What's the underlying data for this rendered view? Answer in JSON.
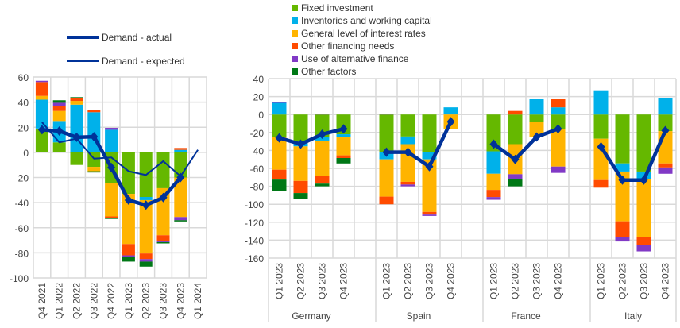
{
  "colors": {
    "fixed": "#65b800",
    "inventories": "#00b1ea",
    "rates": "#ffb400",
    "other_fin": "#ff4b00",
    "alt_fin": "#8139c6",
    "other": "#007816",
    "line": "#003299"
  },
  "legend_left": [
    {
      "label": "Demand - actual",
      "style": "thick"
    },
    {
      "label": "Demand - expected",
      "style": "thin"
    }
  ],
  "legend_right": [
    {
      "label": "Fixed investment",
      "key": "fixed"
    },
    {
      "label": "Inventories and working capital",
      "key": "inventories"
    },
    {
      "label": "General level of interest rates",
      "key": "rates"
    },
    {
      "label": "Other financing needs",
      "key": "other_fin"
    },
    {
      "label": "Use of alternative finance",
      "key": "alt_fin"
    },
    {
      "label": "Other factors",
      "key": "other"
    }
  ],
  "chart_data": [
    {
      "type": "bar",
      "stacked": true,
      "ylim": [
        -100,
        60
      ],
      "yticks": [
        -100,
        -80,
        -60,
        -40,
        -20,
        0,
        20,
        40,
        60
      ],
      "grid": true,
      "legend": "top",
      "categories": [
        "Q4 2021",
        "Q1 2022",
        "Q2 2022",
        "Q3 2022",
        "Q4 2022",
        "Q1 2023",
        "Q2 2023",
        "Q3 2023",
        "Q4 2023",
        "Q1 2024"
      ],
      "series": [
        {
          "name": "Fixed investment",
          "key": "fixed",
          "values": [
            19,
            8,
            -10,
            -11.5,
            -24.5,
            -33,
            -35.5,
            -28.5,
            -20,
            null
          ]
        },
        {
          "name": "Inventories and working capital",
          "key": "inventories",
          "values": [
            23,
            17,
            38,
            32,
            18,
            0.5,
            -2.5,
            0.5,
            2,
            null
          ]
        },
        {
          "name": "General level of interest rates",
          "key": "rates",
          "values": [
            3,
            8,
            3,
            -3.5,
            -26.5,
            -40,
            -42.5,
            -37.5,
            -31.5,
            null
          ]
        },
        {
          "name": "Other financing needs",
          "key": "other_fin",
          "values": [
            11,
            4,
            2,
            2,
            -1,
            -9,
            -4.5,
            -4.5,
            1.5,
            null
          ]
        },
        {
          "name": "Use of alternative finance",
          "key": "alt_fin",
          "values": [
            1,
            2.5,
            0,
            0,
            1.5,
            -1,
            -2,
            -1,
            -2.5,
            null
          ]
        },
        {
          "name": "Other factors",
          "key": "other",
          "values": [
            0,
            2,
            1,
            -1,
            -1,
            -4,
            -4,
            -1,
            -1,
            null
          ]
        }
      ],
      "lines": [
        {
          "name": "Demand - actual",
          "style": "thick",
          "values": [
            18,
            17,
            12,
            12.5,
            -12,
            -38,
            -42,
            -36,
            -20,
            null
          ]
        },
        {
          "name": "Demand - expected",
          "style": "thin",
          "values": [
            24,
            8,
            11,
            -5,
            -4,
            -15,
            -18,
            -7,
            -19,
            2
          ]
        }
      ]
    },
    {
      "type": "bar",
      "stacked": true,
      "ylim": [
        -160,
        40
      ],
      "yticks": [
        -160,
        -140,
        -120,
        -100,
        -80,
        -60,
        -40,
        -20,
        0,
        20,
        40
      ],
      "grid": true,
      "legend": "top",
      "groups": [
        "Germany",
        "Spain",
        "France",
        "Italy"
      ],
      "categories": [
        "Q1 2023",
        "Q2 2023",
        "Q3 2023",
        "Q4 2023"
      ],
      "series": [
        {
          "name": "Fixed investment",
          "key": "fixed",
          "values": [
            [
              -25.5,
              -32,
              -25,
              -22
            ],
            [
              -42,
              -24.5,
              -42,
              0
            ],
            [
              -41,
              -33,
              -8,
              -16
            ],
            [
              -27,
              -54.5,
              -63.5,
              -18.5
            ]
          ]
        },
        {
          "name": "Inventories and working capital",
          "key": "inventories",
          "values": [
            [
              13,
              -3.5,
              -4,
              -3.5
            ],
            [
              -8,
              -8.5,
              -8,
              8
            ],
            [
              -25,
              0,
              17,
              8
            ],
            [
              27,
              -9,
              -8.5,
              18
            ]
          ]
        },
        {
          "name": "General level of interest rates",
          "key": "rates",
          "values": [
            [
              -36,
              -38.5,
              -39,
              -20
            ],
            [
              -41.5,
              -42,
              -58.5,
              -16.5
            ],
            [
              -18,
              -33.5,
              -17,
              -42
            ],
            [
              -46,
              -55.5,
              -64.5,
              -36
            ]
          ]
        },
        {
          "name": "Other financing needs",
          "key": "other_fin",
          "values": [
            [
              -11,
              -13.5,
              -9,
              -3
            ],
            [
              -8.5,
              -3,
              -3,
              0
            ],
            [
              -8,
              4,
              0,
              9
            ],
            [
              -8.5,
              -17.5,
              -9,
              -4.5
            ]
          ]
        },
        {
          "name": "Use of alternative finance",
          "key": "alt_fin",
          "values": [
            [
              0.5,
              0,
              1,
              0
            ],
            [
              1,
              -2,
              -1.5,
              0
            ],
            [
              -3,
              -5,
              0,
              -7
            ],
            [
              0,
              -5,
              -7,
              -7
            ]
          ]
        },
        {
          "name": "Other factors",
          "key": "other",
          "values": [
            [
              -13,
              -6.5,
              -3,
              -6
            ],
            [
              0,
              0,
              0,
              0
            ],
            [
              0,
              -8.5,
              0,
              0
            ],
            [
              0,
              0,
              0,
              0
            ]
          ]
        }
      ],
      "lines": [
        {
          "name": "Demand - actual",
          "style": "thick",
          "values": [
            [
              -26,
              -33,
              -22,
              -16
            ],
            [
              -42,
              -42,
              -58,
              -8
            ],
            [
              -33,
              -50,
              -25,
              -16
            ],
            [
              -36,
              -73,
              -73,
              -18
            ]
          ]
        }
      ]
    }
  ]
}
